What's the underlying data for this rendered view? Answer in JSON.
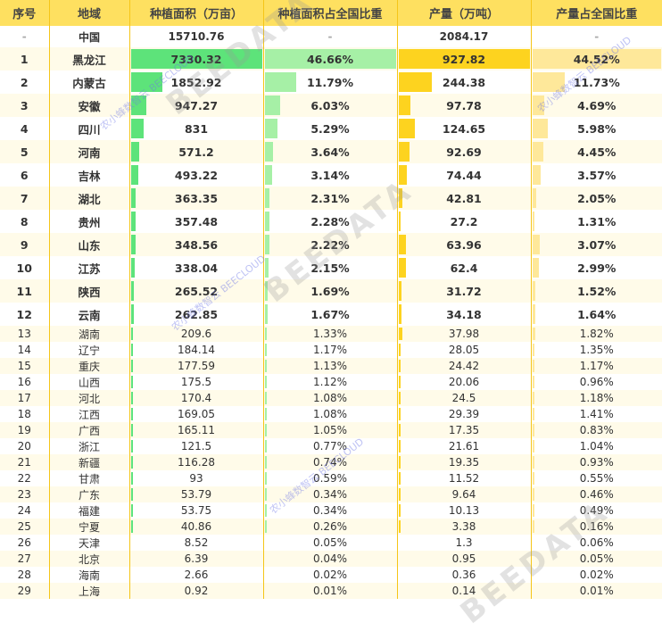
{
  "headers": [
    "序号",
    "地域",
    "种植面积（万亩）",
    "种植面积占全国比重",
    "产量（万吨）",
    "产量占全国比重"
  ],
  "total": {
    "rank": "-",
    "region": "中国",
    "area": "15710.76",
    "area_share": "-",
    "output": "2084.17",
    "output_share": "-"
  },
  "colors": {
    "header": "#fee060",
    "border": "#f5c518",
    "area_bar": "#5de37a",
    "area_share_bar": "#a6f0a6",
    "output_bar": "#fdd31f",
    "output_share_bar": "#fee89a"
  },
  "rows": [
    {
      "rank": "1",
      "region": "黑龙江",
      "area": "7330.32",
      "area_share": "46.66%",
      "output": "927.82",
      "output_share": "44.52%"
    },
    {
      "rank": "2",
      "region": "内蒙古",
      "area": "1852.92",
      "area_share": "11.79%",
      "output": "244.38",
      "output_share": "11.73%"
    },
    {
      "rank": "3",
      "region": "安徽",
      "area": "947.27",
      "area_share": "6.03%",
      "output": "97.78",
      "output_share": "4.69%"
    },
    {
      "rank": "4",
      "region": "四川",
      "area": "831",
      "area_share": "5.29%",
      "output": "124.65",
      "output_share": "5.98%"
    },
    {
      "rank": "5",
      "region": "河南",
      "area": "571.2",
      "area_share": "3.64%",
      "output": "92.69",
      "output_share": "4.45%"
    },
    {
      "rank": "6",
      "region": "吉林",
      "area": "493.22",
      "area_share": "3.14%",
      "output": "74.44",
      "output_share": "3.57%"
    },
    {
      "rank": "7",
      "region": "湖北",
      "area": "363.35",
      "area_share": "2.31%",
      "output": "42.81",
      "output_share": "2.05%"
    },
    {
      "rank": "8",
      "region": "贵州",
      "area": "357.48",
      "area_share": "2.28%",
      "output": "27.2",
      "output_share": "1.31%"
    },
    {
      "rank": "9",
      "region": "山东",
      "area": "348.56",
      "area_share": "2.22%",
      "output": "63.96",
      "output_share": "3.07%"
    },
    {
      "rank": "10",
      "region": "江苏",
      "area": "338.04",
      "area_share": "2.15%",
      "output": "62.4",
      "output_share": "2.99%"
    },
    {
      "rank": "11",
      "region": "陕西",
      "area": "265.52",
      "area_share": "1.69%",
      "output": "31.72",
      "output_share": "1.52%"
    },
    {
      "rank": "12",
      "region": "云南",
      "area": "262.85",
      "area_share": "1.67%",
      "output": "34.18",
      "output_share": "1.64%"
    },
    {
      "rank": "13",
      "region": "湖南",
      "area": "209.6",
      "area_share": "1.33%",
      "output": "37.98",
      "output_share": "1.82%"
    },
    {
      "rank": "14",
      "region": "辽宁",
      "area": "184.14",
      "area_share": "1.17%",
      "output": "28.05",
      "output_share": "1.35%"
    },
    {
      "rank": "15",
      "region": "重庆",
      "area": "177.59",
      "area_share": "1.13%",
      "output": "24.42",
      "output_share": "1.17%"
    },
    {
      "rank": "16",
      "region": "山西",
      "area": "175.5",
      "area_share": "1.12%",
      "output": "20.06",
      "output_share": "0.96%"
    },
    {
      "rank": "17",
      "region": "河北",
      "area": "170.4",
      "area_share": "1.08%",
      "output": "24.5",
      "output_share": "1.18%"
    },
    {
      "rank": "18",
      "region": "江西",
      "area": "169.05",
      "area_share": "1.08%",
      "output": "29.39",
      "output_share": "1.41%"
    },
    {
      "rank": "19",
      "region": "广西",
      "area": "165.11",
      "area_share": "1.05%",
      "output": "17.35",
      "output_share": "0.83%"
    },
    {
      "rank": "20",
      "region": "浙江",
      "area": "121.5",
      "area_share": "0.77%",
      "output": "21.61",
      "output_share": "1.04%"
    },
    {
      "rank": "21",
      "region": "新疆",
      "area": "116.28",
      "area_share": "0.74%",
      "output": "19.35",
      "output_share": "0.93%"
    },
    {
      "rank": "22",
      "region": "甘肃",
      "area": "93",
      "area_share": "0.59%",
      "output": "11.52",
      "output_share": "0.55%"
    },
    {
      "rank": "23",
      "region": "广东",
      "area": "53.79",
      "area_share": "0.34%",
      "output": "9.64",
      "output_share": "0.46%"
    },
    {
      "rank": "24",
      "region": "福建",
      "area": "53.75",
      "area_share": "0.34%",
      "output": "10.13",
      "output_share": "0.49%"
    },
    {
      "rank": "25",
      "region": "宁夏",
      "area": "40.86",
      "area_share": "0.26%",
      "output": "3.38",
      "output_share": "0.16%"
    },
    {
      "rank": "26",
      "region": "天津",
      "area": "8.52",
      "area_share": "0.05%",
      "output": "1.3",
      "output_share": "0.06%"
    },
    {
      "rank": "27",
      "region": "北京",
      "area": "6.39",
      "area_share": "0.04%",
      "output": "0.95",
      "output_share": "0.05%"
    },
    {
      "rank": "28",
      "region": "海南",
      "area": "2.66",
      "area_share": "0.02%",
      "output": "0.36",
      "output_share": "0.02%"
    },
    {
      "rank": "29",
      "region": "上海",
      "area": "0.92",
      "area_share": "0.01%",
      "output": "0.14",
      "output_share": "0.01%"
    }
  ],
  "watermark": {
    "text": "BEEDATA",
    "sub": "农小蜂数智云 BEECLOUD"
  }
}
